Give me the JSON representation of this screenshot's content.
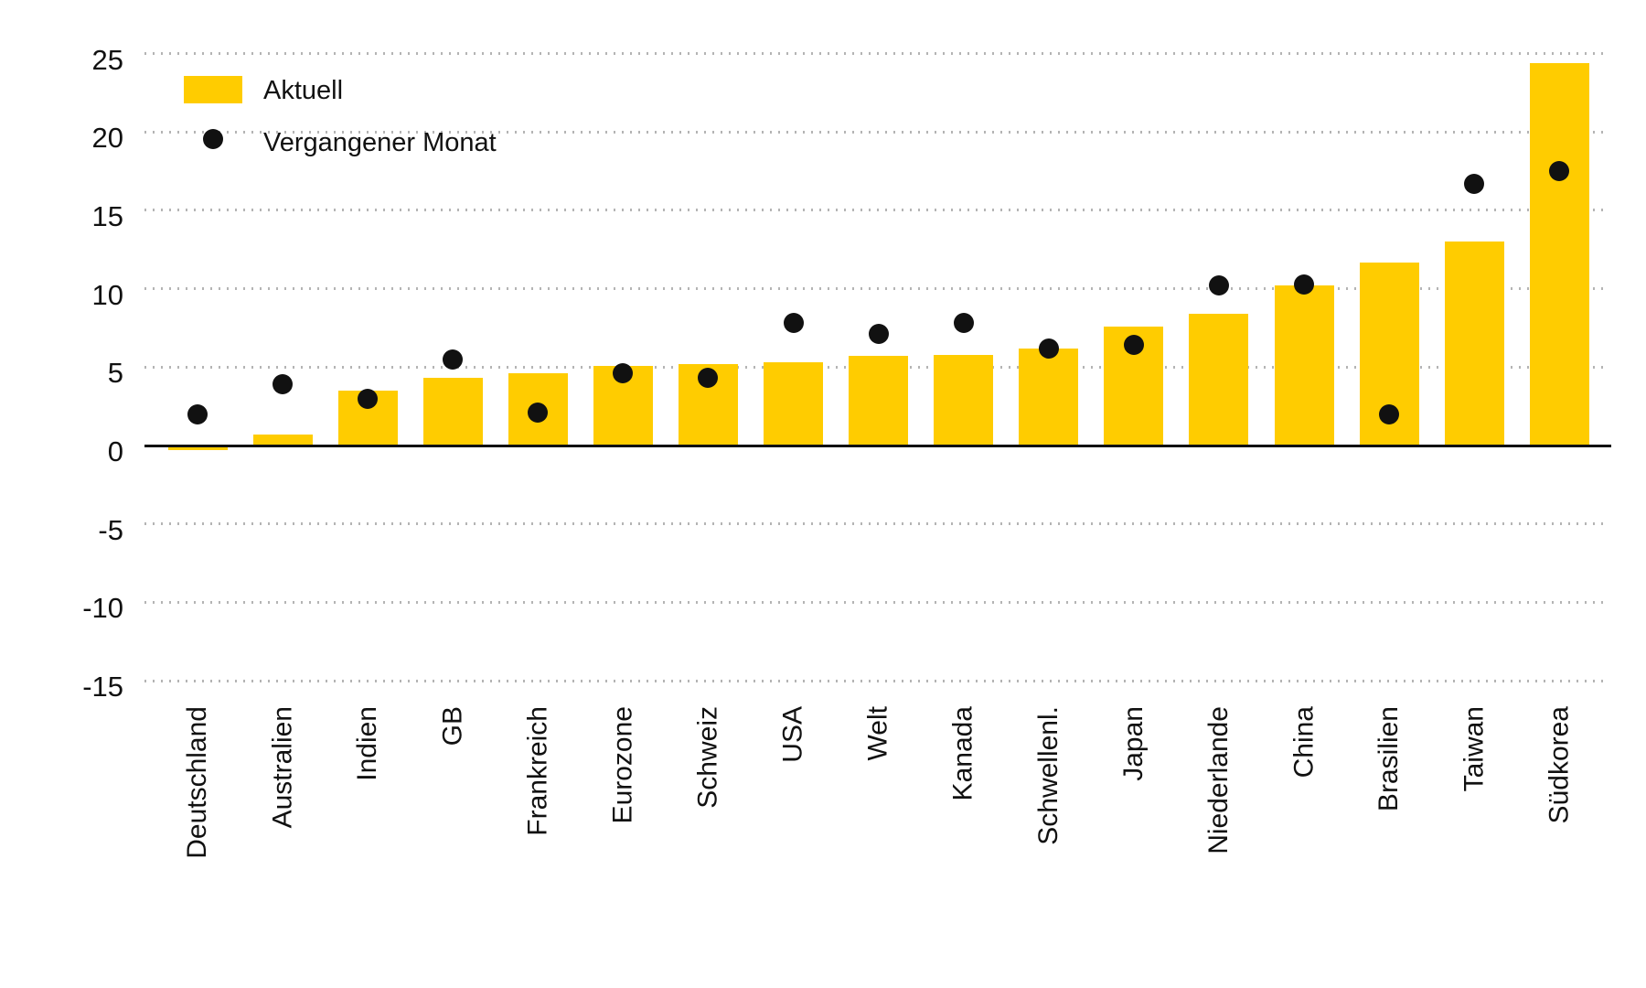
{
  "chart_data": {
    "type": "bar",
    "title": "",
    "xlabel": "",
    "ylabel": "",
    "categories": [
      "Deutschland",
      "Australien",
      "Indien",
      "GB",
      "Frankreich",
      "Eurozone",
      "Schweiz",
      "USA",
      "Welt",
      "Kanada",
      "Schwellenl.",
      "Japan",
      "Niederlande",
      "China",
      "Brasilien",
      "Taiwan",
      "Südkorea"
    ],
    "series": [
      {
        "name": "Aktuell",
        "type": "bar",
        "color": "#ffcc00",
        "values": [
          -0.3,
          0.7,
          3.5,
          4.3,
          4.6,
          5.1,
          5.2,
          5.3,
          5.7,
          5.8,
          6.2,
          7.6,
          8.4,
          10.2,
          11.7,
          13.0,
          24.4
        ]
      },
      {
        "name": "Vergangener Monat",
        "type": "scatter",
        "color": "#111111",
        "values": [
          2.0,
          3.9,
          3.0,
          5.5,
          2.1,
          4.6,
          4.3,
          7.8,
          7.1,
          7.8,
          6.2,
          6.4,
          10.2,
          10.3,
          2.0,
          16.7,
          17.5
        ]
      }
    ],
    "ylim": [
      -15,
      25
    ],
    "yticks": [
      25,
      20,
      15,
      10,
      5,
      0,
      -5,
      -10,
      -15
    ],
    "grid": "horizontal-dotted",
    "legend_position": "top-left"
  },
  "colors": {
    "bar": "#ffcc00",
    "dot": "#111111",
    "axis": "#111111",
    "grid": "#b4b4b4",
    "text": "#111111",
    "background": "#ffffff"
  }
}
